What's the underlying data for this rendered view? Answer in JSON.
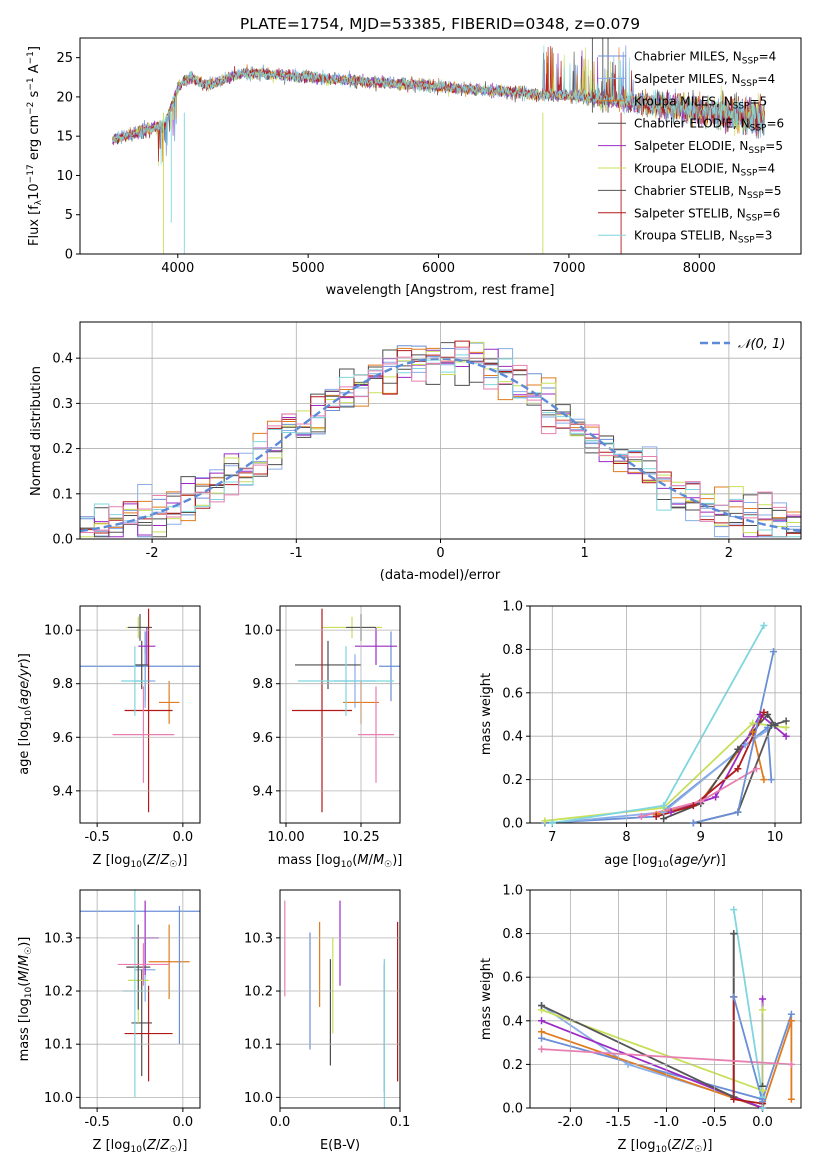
{
  "colors": [
    "#6b8fd6",
    "#8aaee8",
    "#e07b1f",
    "#4d4d4d",
    "#9b2bc4",
    "#c7e05a",
    "#555555",
    "#b01a1a",
    "#7fd6de",
    "#e87fb0"
  ],
  "legend_labels": [
    "Chabrier MILES, N_SSP=4",
    "Salpeter MILES, N_SSP=4",
    "Kroupa MILES, N_SSP=5",
    "Chabrier ELODIE, N_SSP=6",
    "Salpeter ELODIE, N_SSP=5",
    "Kroupa ELODIE, N_SSP=4",
    "Chabrier STELIB, N_SSP=5",
    "Salpeter STELIB, N_SSP=6",
    "Kroupa STELIB, N_SSP=3"
  ],
  "chart_data": [
    {
      "id": "spectrum",
      "type": "line",
      "title": "PLATE=1754, MJD=53385, FIBERID=0348, z=0.079",
      "xlabel": "wavelength [Angstrom, rest frame]",
      "ylabel": "Flux [f_λ 10^-17 erg cm^-2 s^-1 A^-1]",
      "xlim": [
        3250,
        8780
      ],
      "ylim": [
        0,
        27.5
      ],
      "xticks": [
        4000,
        5000,
        6000,
        7000,
        8000
      ],
      "yticks": [
        0,
        5,
        10,
        15,
        20,
        25
      ],
      "continuum": {
        "x": [
          3500,
          3600,
          3700,
          3800,
          3900,
          4000,
          4050,
          4100,
          4200,
          4300,
          4400,
          4500,
          4600,
          4800,
          5000,
          5200,
          5400,
          5600,
          5800,
          6000,
          6200,
          6400,
          6600,
          6800,
          7000,
          7200,
          7400,
          7600,
          7800,
          8000,
          8200,
          8400,
          8500
        ],
        "y": [
          14.5,
          15,
          15.5,
          16,
          16.5,
          21,
          22,
          22.5,
          21.5,
          21.8,
          22.5,
          23,
          23,
          22.8,
          22.5,
          22.2,
          22,
          21.8,
          21.6,
          21.3,
          21,
          20.8,
          20.6,
          20.3,
          20.2,
          19.8,
          19.5,
          19.1,
          18.7,
          18.2,
          17.8,
          17.4,
          17.2
        ]
      },
      "noise_amplitude": 0.5,
      "legend_position": "upper-right"
    },
    {
      "id": "residual-histogram",
      "type": "step-histogram",
      "xlabel": "(data-model)/error",
      "ylabel": "Normed distribution",
      "xlim": [
        -2.5,
        2.5
      ],
      "ylim": [
        0,
        0.48
      ],
      "xticks": [
        -2,
        -1,
        0,
        1,
        2
      ],
      "yticks": [
        0,
        0.1,
        0.2,
        0.3,
        0.4
      ],
      "bins": 50,
      "reference_curve": "N(0,1)",
      "legend_label": "𝒩(0, 1)",
      "legend_position": "upper-right"
    },
    {
      "id": "age-vs-Z",
      "type": "errorbar",
      "xlabel": "Z [log10(Z/Z☉)]",
      "ylabel": "age  [log10(age/yr)]",
      "xlim": [
        -0.6,
        0.1
      ],
      "ylim": [
        9.28,
        10.09
      ],
      "xticks": [
        -0.5,
        0.0
      ],
      "yticks": [
        9.4,
        9.6,
        9.8,
        10.0
      ],
      "points": [
        {
          "x": -0.22,
          "xerr": 0.38,
          "y": 9.865,
          "yerr": 0.13
        },
        {
          "x": -0.22,
          "xerr": 0.06,
          "y": 9.81,
          "yerr": 0.1
        },
        {
          "x": -0.08,
          "xerr": 0.06,
          "y": 9.73,
          "yerr": 0.08
        },
        {
          "x": -0.24,
          "xerr": 0.04,
          "y": 9.87,
          "yerr": 0.09
        },
        {
          "x": -0.21,
          "xerr": 0.05,
          "y": 9.94,
          "yerr": 0.07
        },
        {
          "x": -0.26,
          "xerr": 0.07,
          "y": 10.01,
          "yerr": 0.04
        },
        {
          "x": -0.25,
          "xerr": 0.07,
          "y": 10.01,
          "yerr": 0.05
        },
        {
          "x": -0.2,
          "xerr": 0.14,
          "y": 9.7,
          "yerr": 0.38
        },
        {
          "x": -0.28,
          "xerr": 0.08,
          "y": 9.81,
          "yerr": 0.13
        },
        {
          "x": -0.23,
          "xerr": 0.18,
          "y": 9.61,
          "yerr": 0.18
        }
      ]
    },
    {
      "id": "age-vs-mass",
      "type": "errorbar",
      "xlabel": "mass [log10(M/M☉)]",
      "ylabel": "",
      "xlim": [
        9.98,
        10.38
      ],
      "ylim": [
        9.28,
        10.09
      ],
      "xticks": [
        10.0,
        10.25
      ],
      "yticks": [
        9.4,
        9.6,
        9.8,
        10.0
      ],
      "points": [
        {
          "x": 10.35,
          "xerr": 0.04,
          "y": 9.865,
          "yerr": 0.13
        },
        {
          "x": 10.23,
          "xerr": 0.07,
          "y": 9.81,
          "yerr": 0.1
        },
        {
          "x": 10.25,
          "xerr": 0.06,
          "y": 9.73,
          "yerr": 0.08
        },
        {
          "x": 10.14,
          "xerr": 0.11,
          "y": 9.87,
          "yerr": 0.09
        },
        {
          "x": 10.3,
          "xerr": 0.07,
          "y": 9.94,
          "yerr": 0.07
        },
        {
          "x": 10.22,
          "xerr": 0.1,
          "y": 10.01,
          "yerr": 0.04
        },
        {
          "x": 10.25,
          "xerr": 0.05,
          "y": 10.01,
          "yerr": 0.05
        },
        {
          "x": 10.12,
          "xerr": 0.1,
          "y": 9.7,
          "yerr": 0.38
        },
        {
          "x": 10.2,
          "xerr": 0.16,
          "y": 9.81,
          "yerr": 0.13
        },
        {
          "x": 10.3,
          "xerr": 0.06,
          "y": 9.61,
          "yerr": 0.18
        }
      ]
    },
    {
      "id": "massweight-vs-age",
      "type": "line",
      "xlabel": "age  [log10(age/yr)]",
      "ylabel": "mass weight",
      "xlim": [
        6.7,
        10.35
      ],
      "ylim": [
        0,
        1
      ],
      "xticks": [
        7,
        8,
        9,
        10
      ],
      "yticks": [
        0.0,
        0.2,
        0.4,
        0.6,
        0.8,
        1.0
      ],
      "series": [
        {
          "x": [
            6.9,
            8.4,
            9.9,
            9.95
          ],
          "y": [
            0.0,
            0.03,
            0.44,
            0.2
          ]
        },
        {
          "x": [
            7.0,
            8.5,
            9.6,
            10.0
          ],
          "y": [
            0.0,
            0.05,
            0.36,
            0.45
          ]
        },
        {
          "x": [
            8.4,
            9.0,
            9.7,
            9.85
          ],
          "y": [
            0.04,
            0.1,
            0.42,
            0.2
          ]
        },
        {
          "x": [
            8.5,
            9.0,
            9.5,
            9.9,
            10.0
          ],
          "y": [
            0.02,
            0.09,
            0.34,
            0.5,
            0.45
          ]
        },
        {
          "x": [
            8.6,
            9.2,
            9.8,
            10.15
          ],
          "y": [
            0.05,
            0.12,
            0.5,
            0.4
          ]
        },
        {
          "x": [
            6.9,
            8.5,
            9.7,
            10.15
          ],
          "y": [
            0.01,
            0.07,
            0.46,
            0.44
          ]
        },
        {
          "x": [
            8.9,
            9.5,
            9.95,
            10.15
          ],
          "y": [
            0.0,
            0.05,
            0.45,
            0.47
          ]
        },
        {
          "x": [
            8.4,
            8.9,
            9.5,
            9.85
          ],
          "y": [
            0.03,
            0.08,
            0.25,
            0.51
          ]
        },
        {
          "x": [
            7.0,
            8.5,
            9.85
          ],
          "y": [
            0.0,
            0.08,
            0.91
          ]
        },
        {
          "x": [
            8.2,
            9.0,
            9.75
          ],
          "y": [
            0.03,
            0.1,
            0.25
          ]
        },
        {
          "x": [
            8.9,
            9.5,
            9.98
          ],
          "y": [
            0.0,
            0.05,
            0.79
          ]
        }
      ]
    },
    {
      "id": "mass-vs-Z",
      "type": "errorbar",
      "xlabel": "Z [log10(Z/Z☉)]",
      "ylabel": "mass [log10(M/M☉)]",
      "xlim": [
        -0.6,
        0.1
      ],
      "ylim": [
        9.98,
        10.39
      ],
      "xticks": [
        -0.5,
        0.0
      ],
      "yticks": [
        10.0,
        10.1,
        10.2,
        10.3
      ],
      "points": [
        {
          "x": -0.22,
          "xerr": 0.38,
          "y": 10.35,
          "yerr": 0.0
        },
        {
          "x": -0.22,
          "xerr": 0.06,
          "y": 10.24,
          "yerr": 0.06
        },
        {
          "x": -0.08,
          "xerr": 0.12,
          "y": 10.255,
          "yerr": 0.07
        },
        {
          "x": -0.24,
          "xerr": 0.06,
          "y": 10.14,
          "yerr": 0.1
        },
        {
          "x": -0.22,
          "xerr": 0.08,
          "y": 10.3,
          "yerr": 0.07
        },
        {
          "x": -0.26,
          "xerr": 0.06,
          "y": 10.22,
          "yerr": 0.08
        },
        {
          "x": -0.26,
          "xerr": 0.07,
          "y": 10.245,
          "yerr": 0.08
        },
        {
          "x": -0.2,
          "xerr": 0.14,
          "y": 10.12,
          "yerr": 0.09
        },
        {
          "x": -0.28,
          "xerr": 0.07,
          "y": 10.2,
          "yerr": 0.2
        },
        {
          "x": -0.23,
          "xerr": 0.15,
          "y": 10.25,
          "yerr": 0.04
        },
        {
          "x": -0.02,
          "xerr": 0.0,
          "y": 10.23,
          "yerr": 0.13
        }
      ]
    },
    {
      "id": "mass-vs-ebv",
      "type": "errorbar",
      "xlabel": "E(B-V)",
      "ylabel": "",
      "xlim": [
        0.0,
        0.1
      ],
      "ylim": [
        9.98,
        10.39
      ],
      "xticks": [
        0.0,
        0.1
      ],
      "yticks": [
        10.0,
        10.1,
        10.2,
        10.3
      ],
      "points": [
        {
          "x": 0.025,
          "y": 10.2,
          "yerr": 0.11
        },
        {
          "x": 0.087,
          "y": 10.13,
          "yerr": 0.13
        },
        {
          "x": 0.033,
          "y": 10.25,
          "yerr": 0.08
        },
        {
          "x": 0.042,
          "y": 10.16,
          "yerr": 0.1
        },
        {
          "x": 0.05,
          "y": 10.29,
          "yerr": 0.08
        },
        {
          "x": 0.044,
          "y": 10.21,
          "yerr": 0.09
        },
        {
          "x": 0.087,
          "y": 10.13,
          "yerr": 0.12
        },
        {
          "x": 0.098,
          "y": 10.18,
          "yerr": 0.15
        },
        {
          "x": 0.087,
          "y": 10.12,
          "yerr": 0.14
        },
        {
          "x": 0.004,
          "y": 10.28,
          "yerr": 0.09
        }
      ]
    },
    {
      "id": "massweight-vs-Z",
      "type": "line",
      "xlabel": "Z [log10(Z/Z☉)]",
      "ylabel": "mass weight",
      "xlim": [
        -2.42,
        0.4
      ],
      "ylim": [
        0,
        1
      ],
      "xticks": [
        -2.0,
        -1.5,
        -1.0,
        -0.5,
        0.0
      ],
      "yticks": [
        0.0,
        0.2,
        0.4,
        0.6,
        0.8,
        1.0
      ],
      "series": [
        {
          "x": [
            -2.3,
            0.0,
            0.3
          ],
          "y": [
            0.32,
            0.04,
            0.43
          ]
        },
        {
          "x": [
            -2.3,
            -1.4,
            -0.3
          ],
          "y": [
            0.47,
            0.2,
            0.05
          ]
        },
        {
          "x": [
            -2.3,
            0.0,
            0.3,
            0.3
          ],
          "y": [
            0.35,
            0.0,
            0.4,
            0.04
          ]
        },
        {
          "x": [
            -0.3,
            -0.3,
            0.0,
            0.0
          ],
          "y": [
            0.8,
            0.05,
            0.0,
            0.1
          ]
        },
        {
          "x": [
            -2.3,
            0.0,
            0.0
          ],
          "y": [
            0.4,
            0.0,
            0.5
          ]
        },
        {
          "x": [
            -2.3,
            0.0,
            0.0
          ],
          "y": [
            0.45,
            0.08,
            0.45
          ]
        },
        {
          "x": [
            -2.3,
            -0.3,
            -0.3
          ],
          "y": [
            0.47,
            0.05,
            0.8
          ]
        },
        {
          "x": [
            -0.3,
            -0.3,
            0.0
          ],
          "y": [
            0.51,
            0.04,
            0.02
          ]
        },
        {
          "x": [
            -0.3,
            0.0,
            0.0
          ],
          "y": [
            0.91,
            0.05,
            0.0
          ]
        },
        {
          "x": [
            -2.3,
            0.3
          ],
          "y": [
            0.27,
            0.2
          ]
        },
        {
          "x": [
            -0.3,
            0.0
          ],
          "y": [
            0.51,
            0.03
          ]
        }
      ]
    }
  ]
}
